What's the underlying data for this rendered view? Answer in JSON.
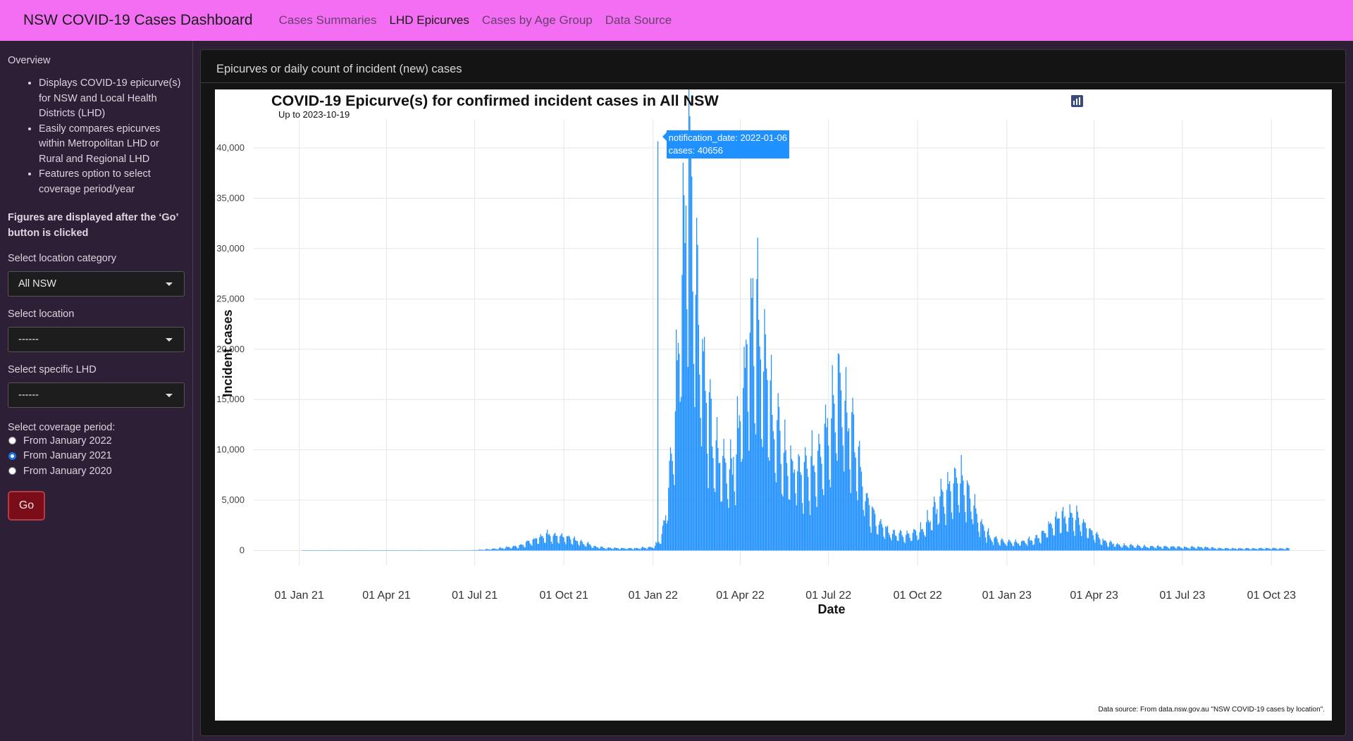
{
  "navbar": {
    "brand": "NSW COVID-19 Cases Dashboard",
    "links": [
      {
        "label": "Cases Summaries",
        "active": false
      },
      {
        "label": "LHD Epicurves",
        "active": true
      },
      {
        "label": "Cases by Age Group",
        "active": false
      },
      {
        "label": "Data Source",
        "active": false
      }
    ],
    "background": "#f46ef4"
  },
  "sidebar": {
    "overview_heading": "Overview",
    "overview_items": [
      "Displays COVID-19 epicurve(s) for NSW and Local Health Districts (LHD)",
      "Easily compares epicurves within Metropolitan LHD or Rural and Regional LHD",
      "Features option to select coverage period/year"
    ],
    "note": "Figures are displayed after the ‘Go’ button is clicked",
    "location_category": {
      "label": "Select location category",
      "value": "All NSW"
    },
    "location": {
      "label": "Select location",
      "value": "------"
    },
    "specific_lhd": {
      "label": "Select specific LHD",
      "value": "------"
    },
    "coverage": {
      "label": "Select coverage period:",
      "options": [
        {
          "label": "From January 2022",
          "checked": false
        },
        {
          "label": "From January 2021",
          "checked": true
        },
        {
          "label": "From January 2020",
          "checked": false
        }
      ]
    },
    "go_label": "Go"
  },
  "card": {
    "header": "Epicurves or daily count of incident (new) cases"
  },
  "modebar_icons": [
    "camera-icon",
    "zoom-icon",
    "pan-icon",
    "box-select-icon",
    "lasso-icon",
    "zoom-in-icon",
    "zoom-out-icon",
    "autoscale-icon",
    "reset-axes-icon",
    "spike-lines-icon",
    "compare-hover-icon",
    "plotly-logo-icon"
  ],
  "tooltip": {
    "line1": "notification_date: 2022-01-06",
    "line2": "cases: 40656"
  },
  "source_note": "Data source: From data.nsw.gov.au \"NSW COVID-19 cases by location\".",
  "chart_data": {
    "type": "bar",
    "title": "COVID-19 Epicurve(s) for confirmed incident cases in All NSW",
    "subtitle": "Up to 2023-10-19",
    "xlabel": "Date",
    "ylabel": "Incident cases",
    "bar_color": "#1e90ff",
    "x_ticks": [
      "01 Jan 21",
      "01 Apr 21",
      "01 Jul 21",
      "01 Oct 21",
      "01 Jan 22",
      "01 Apr 22",
      "01 Jul 22",
      "01 Oct 22",
      "01 Jan 23",
      "01 Apr 23",
      "01 Jul 23",
      "01 Oct 23"
    ],
    "x_tick_dates": [
      "2021-01-01",
      "2021-04-01",
      "2021-07-01",
      "2021-10-01",
      "2022-01-01",
      "2022-04-01",
      "2022-07-01",
      "2022-10-01",
      "2023-01-01",
      "2023-04-01",
      "2023-07-01",
      "2023-10-01"
    ],
    "y_ticks": [
      0,
      5000,
      10000,
      15000,
      20000,
      25000,
      30000,
      35000,
      40000
    ],
    "y_tick_labels": [
      "0",
      "5,000",
      "10,000",
      "15,000",
      "20,000",
      "25,000",
      "30,000",
      "35,000",
      "40,000"
    ],
    "xlim": [
      "2020-11-15",
      "2023-11-25"
    ],
    "ylim": [
      -1500,
      42800
    ],
    "grid": true,
    "weekly_date_start": "2021-01-04",
    "weekly_values": [
      5,
      5,
      5,
      5,
      5,
      5,
      5,
      5,
      5,
      5,
      5,
      5,
      5,
      5,
      5,
      5,
      5,
      5,
      5,
      5,
      5,
      5,
      5,
      8,
      15,
      30,
      60,
      100,
      150,
      210,
      280,
      350,
      450,
      700,
      1000,
      1250,
      1350,
      1400,
      1300,
      1200,
      1050,
      800,
      600,
      400,
      300,
      250,
      250,
      230,
      200,
      200,
      250,
      300,
      400,
      1500,
      5500,
      13000,
      27000,
      38000,
      26000,
      18000,
      12000,
      9000,
      8000,
      8000,
      9000,
      16000,
      22000,
      23000,
      18000,
      14000,
      11000,
      9000,
      8000,
      7500,
      7000,
      7500,
      9000,
      11000,
      13000,
      15000,
      14000,
      11000,
      8000,
      5000,
      3500,
      2500,
      2000,
      1700,
      1500,
      1500,
      1600,
      1800,
      2500,
      3500,
      4500,
      5500,
      6500,
      6500,
      5500,
      4000,
      2500,
      1500,
      1100,
      900,
      800,
      800,
      800,
      900,
      1000,
      1500,
      2200,
      2800,
      3100,
      3200,
      3000,
      2600,
      2000,
      1300,
      900,
      700,
      600,
      500,
      450,
      400,
      400,
      350,
      350,
      350,
      350,
      350,
      300,
      300,
      300,
      300,
      250,
      200
    ]
  }
}
